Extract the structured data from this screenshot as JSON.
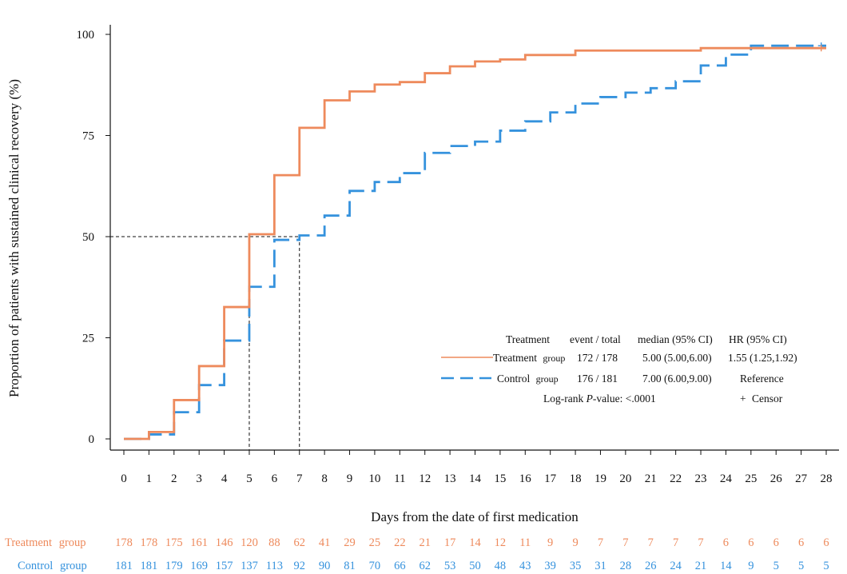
{
  "chart_data": {
    "type": "line",
    "xlabel": "Days from the date of first medication",
    "ylabel": "Proportion of patients with sustained clinical recovery  (%)",
    "xlim": [
      0,
      28
    ],
    "ylim": [
      0,
      100
    ],
    "x_ticks": [
      "0",
      "1",
      "2",
      "3",
      "4",
      "5",
      "6",
      "7",
      "8",
      "9",
      "10",
      "11",
      "12",
      "13",
      "14",
      "15",
      "16",
      "17",
      "18",
      "19",
      "20",
      "21",
      "22",
      "23",
      "24",
      "25",
      "26",
      "27",
      "28"
    ],
    "y_ticks": [
      "0",
      "25",
      "50",
      "75",
      "100"
    ],
    "colors": {
      "treatment": "#ee8a5c",
      "control": "#3592dd"
    },
    "series": [
      {
        "name": "Treatment",
        "group_word": "group",
        "style": "solid",
        "event_total": "172 / 178",
        "median": "5.00 (5.00,6.00)",
        "hr": "1.55 (1.25,1.92)",
        "x": [
          0,
          1,
          2,
          3,
          4,
          5,
          6,
          7,
          8,
          9,
          10,
          11,
          12,
          13,
          14,
          15,
          16,
          17,
          18,
          19,
          20,
          21,
          22,
          23,
          24,
          25,
          26,
          27,
          28
        ],
        "values": [
          0,
          1.7,
          9.6,
          18.0,
          32.6,
          50.6,
          65.2,
          76.9,
          83.7,
          85.9,
          87.6,
          88.2,
          90.4,
          92.1,
          93.3,
          93.8,
          94.9,
          94.9,
          96.0,
          96.0,
          96.0,
          96.0,
          96.0,
          96.6,
          96.6,
          96.6,
          96.6,
          96.6,
          96.6
        ],
        "at_risk": [
          "178",
          "178",
          "175",
          "161",
          "146",
          "120",
          "88",
          "62",
          "41",
          "29",
          "25",
          "22",
          "21",
          "17",
          "14",
          "12",
          "11",
          "9",
          "9",
          "7",
          "7",
          "7",
          "7",
          "7",
          "6",
          "6",
          "6",
          "6",
          "6"
        ]
      },
      {
        "name": "Control",
        "group_word": "group",
        "style": "dashed",
        "event_total": "176 / 181",
        "median": "7.00 (6.00,9.00)",
        "hr": "Reference",
        "x": [
          0,
          1,
          2,
          3,
          4,
          5,
          6,
          7,
          8,
          9,
          10,
          11,
          12,
          13,
          14,
          15,
          16,
          17,
          18,
          19,
          20,
          21,
          22,
          23,
          24,
          25,
          26,
          27,
          28
        ],
        "values": [
          0,
          1.1,
          6.6,
          13.3,
          24.3,
          37.6,
          49.2,
          50.3,
          55.2,
          61.3,
          63.5,
          65.7,
          70.7,
          72.4,
          73.5,
          76.2,
          78.5,
          80.7,
          82.9,
          84.5,
          85.6,
          86.7,
          88.4,
          92.3,
          95.0,
          97.2,
          97.2,
          97.2,
          97.2
        ],
        "at_risk": [
          "181",
          "181",
          "179",
          "169",
          "157",
          "137",
          "113",
          "92",
          "90",
          "81",
          "70",
          "66",
          "62",
          "53",
          "50",
          "48",
          "43",
          "39",
          "35",
          "31",
          "28",
          "26",
          "24",
          "21",
          "14",
          "9",
          "5",
          "5",
          "5"
        ]
      }
    ],
    "median_reference": {
      "y": 50,
      "x_values": [
        5,
        7
      ]
    },
    "legend": {
      "position": "bottom-right",
      "header": {
        "treatment": "Treatment",
        "event_total": "event /  total",
        "median": "median (95% CI)",
        "hr": "HR (95% CI)"
      },
      "pvalue_prefix": "Log-rank ",
      "pvalue_italic": "P",
      "pvalue_suffix": "-value: <.0001",
      "censor_symbol": "+",
      "censor_label": "Censor"
    }
  }
}
